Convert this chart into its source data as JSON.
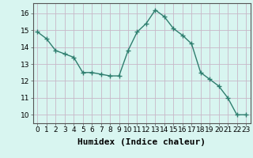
{
  "x": [
    0,
    1,
    2,
    3,
    4,
    5,
    6,
    7,
    8,
    9,
    10,
    11,
    12,
    13,
    14,
    15,
    16,
    17,
    18,
    19,
    20,
    21,
    22,
    23
  ],
  "y": [
    14.9,
    14.5,
    13.8,
    13.6,
    13.4,
    12.5,
    12.5,
    12.4,
    12.3,
    12.3,
    13.8,
    14.9,
    15.4,
    16.2,
    15.8,
    15.1,
    14.7,
    14.2,
    12.5,
    12.1,
    11.7,
    11.0,
    10.0,
    10.0
  ],
  "line_color": "#2e7d6e",
  "marker": "+",
  "marker_size": 4,
  "bg_color": "#d8f5f0",
  "grid_color_major": "#c8b8c8",
  "grid_color_minor": "#ddd0dd",
  "xlabel": "Humidex (Indice chaleur)",
  "ylim": [
    9.5,
    16.6
  ],
  "xlim": [
    -0.5,
    23.5
  ],
  "yticks": [
    10,
    11,
    12,
    13,
    14,
    15,
    16
  ],
  "xticks": [
    0,
    1,
    2,
    3,
    4,
    5,
    6,
    7,
    8,
    9,
    10,
    11,
    12,
    13,
    14,
    15,
    16,
    17,
    18,
    19,
    20,
    21,
    22,
    23
  ],
  "tick_fontsize": 6.5,
  "xlabel_fontsize": 8,
  "line_width": 1.0,
  "marker_edge_width": 1.0
}
